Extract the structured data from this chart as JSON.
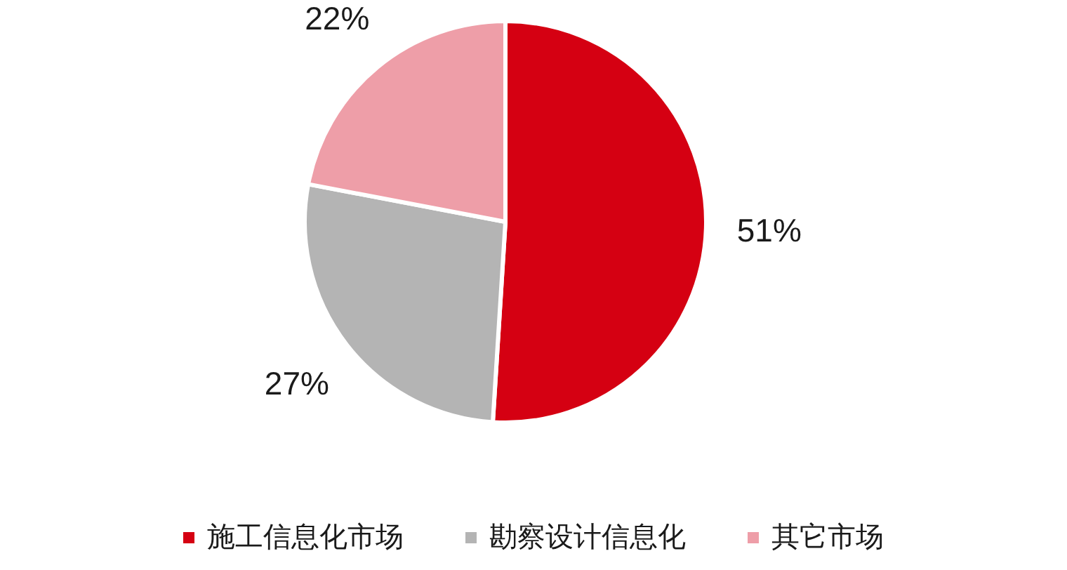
{
  "chart_data": {
    "type": "pie",
    "categories": [
      "施工信息化市场",
      "勘察设计信息化",
      "其它市场"
    ],
    "values": [
      51,
      27,
      22
    ],
    "colors": [
      "#d50012",
      "#b4b4b4",
      "#ee9ea8"
    ],
    "value_labels": [
      "51%",
      "27%",
      "22%"
    ],
    "legend": "bottom"
  }
}
